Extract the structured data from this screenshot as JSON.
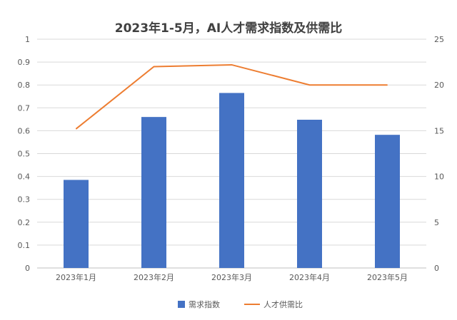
{
  "chart_data": {
    "type": "bar",
    "title": "2023年1-5月，AI人才需求指数及供需比",
    "categories": [
      "2023年1月",
      "2023年2月",
      "2023年3月",
      "2023年4月",
      "2023年5月"
    ],
    "series": [
      {
        "name": "需求指数",
        "type": "bar",
        "axis": "left",
        "color": "#4472c4",
        "values": [
          0.385,
          0.66,
          0.765,
          0.648,
          0.582
        ]
      },
      {
        "name": "人才供需比",
        "type": "line",
        "axis": "right",
        "color": "#ed7d31",
        "values": [
          15.2,
          22.0,
          22.2,
          20.0,
          20.0
        ]
      }
    ],
    "y_left": {
      "range": [
        0,
        1
      ],
      "ticks": [
        "0",
        "0.1",
        "0.2",
        "0.3",
        "0.4",
        "0.5",
        "0.6",
        "0.7",
        "0.8",
        "0.9",
        "1"
      ]
    },
    "y_right": {
      "range": [
        0,
        25
      ],
      "ticks": [
        "0",
        "5",
        "10",
        "15",
        "20",
        "25"
      ]
    },
    "grid": true,
    "legend": "bottom-center"
  }
}
